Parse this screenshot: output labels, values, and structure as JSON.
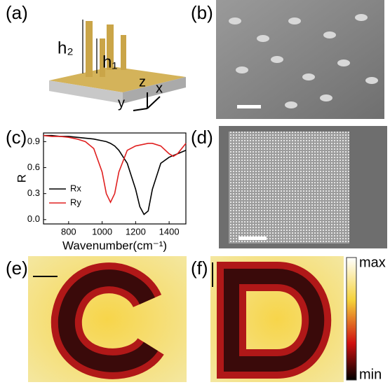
{
  "panels": {
    "a": "(a)",
    "b": "(b)",
    "c": "(c)",
    "d": "(d)",
    "e": "(e)",
    "f": "(f)"
  },
  "labels": {
    "h2": "h₂",
    "h1": "h₁",
    "z": "z",
    "y": "y",
    "x": "x",
    "max": "max",
    "min": "min"
  },
  "chart_data": {
    "type": "line",
    "xlabel": "Wavenumber(cm⁻¹)",
    "ylabel": "R",
    "x": [
      650,
      700,
      750,
      800,
      850,
      900,
      950,
      1000,
      1025,
      1050,
      1075,
      1100,
      1150,
      1200,
      1225,
      1250,
      1275,
      1300,
      1350,
      1400,
      1425,
      1450,
      1500
    ],
    "series": [
      {
        "name": "Rx",
        "color": "#000000",
        "values": [
          0.97,
          0.97,
          0.96,
          0.96,
          0.95,
          0.94,
          0.93,
          0.91,
          0.9,
          0.88,
          0.85,
          0.8,
          0.65,
          0.35,
          0.15,
          0.06,
          0.1,
          0.35,
          0.65,
          0.72,
          0.74,
          0.76,
          0.8
        ]
      },
      {
        "name": "Ry",
        "color": "#e02020",
        "values": [
          0.97,
          0.96,
          0.96,
          0.95,
          0.93,
          0.9,
          0.82,
          0.55,
          0.3,
          0.2,
          0.3,
          0.55,
          0.8,
          0.85,
          0.86,
          0.87,
          0.88,
          0.88,
          0.85,
          0.76,
          0.73,
          0.76,
          0.88
        ]
      }
    ],
    "xlim": [
      650,
      1500
    ],
    "xticks": [
      800,
      1000,
      1200,
      1400
    ],
    "ylim": [
      -0.05,
      1.0
    ],
    "yticks": [
      {
        "value": 0,
        "label": "0.0"
      },
      0.3,
      0.6,
      0.9
    ],
    "legend": "lower left"
  }
}
